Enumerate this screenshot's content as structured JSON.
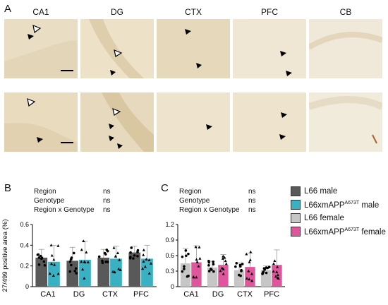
{
  "panels": {
    "A": {
      "letter": "A",
      "regions": [
        "CA1",
        "DG",
        "CTX",
        "PFC",
        "CB"
      ]
    },
    "B": {
      "letter": "B",
      "stats": [
        {
          "label": "Region",
          "value": "ns"
        },
        {
          "label": "Genotype",
          "value": "ns"
        },
        {
          "label": "Region x Genotype",
          "value": "ns"
        }
      ]
    },
    "C": {
      "letter": "C",
      "stats": [
        {
          "label": "Region",
          "value": "ns"
        },
        {
          "label": "Genotype",
          "value": "ns"
        },
        {
          "label": "Region x Genotype",
          "value": "ns"
        }
      ]
    }
  },
  "legend": [
    {
      "base": "L66 male",
      "sup": "",
      "suffix": "",
      "color": "#595959"
    },
    {
      "base": "L66xmAPP",
      "sup": "A673T",
      "suffix": " male",
      "color": "#3ab0c3"
    },
    {
      "base": "L66 female",
      "sup": "",
      "suffix": "",
      "color": "#c6c6c6"
    },
    {
      "base": "L66xmAPP",
      "sup": "A673T",
      "suffix": " female",
      "color": "#e0569c"
    }
  ],
  "chart_data": [
    {
      "type": "bar",
      "panel": "B",
      "ylabel": "27/499 positive area (%)",
      "categories": [
        "CA1",
        "DG",
        "CTX",
        "PFC"
      ],
      "ylim": [
        0,
        0.6
      ],
      "yticks": [
        "0",
        "0.2",
        "0.4",
        "0.6"
      ],
      "series": [
        {
          "name": "L66 male",
          "values": [
            0.28,
            0.25,
            0.28,
            0.33
          ],
          "error": [
            0.08,
            0.13,
            0.08,
            0.06
          ]
        },
        {
          "name": "L66xmAPP male",
          "values": [
            0.24,
            0.26,
            0.27,
            0.27
          ],
          "error": [
            0.16,
            0.18,
            0.12,
            0.13
          ]
        }
      ]
    },
    {
      "type": "bar",
      "panel": "C",
      "categories": [
        "CA1",
        "DG",
        "CTX",
        "PFC"
      ],
      "ylim": [
        0,
        1.2
      ],
      "yticks": [
        "0",
        "0.3",
        "0.6",
        "0.9",
        "1.2"
      ],
      "series": [
        {
          "name": "L66 female",
          "values": [
            0.45,
            0.37,
            0.32,
            0.32
          ],
          "error": [
            0.29,
            0.12,
            0.14,
            0.08
          ]
        },
        {
          "name": "L66xmAPP female",
          "values": [
            0.47,
            0.42,
            0.38,
            0.42
          ],
          "error": [
            0.32,
            0.2,
            0.27,
            0.29
          ]
        }
      ]
    }
  ]
}
